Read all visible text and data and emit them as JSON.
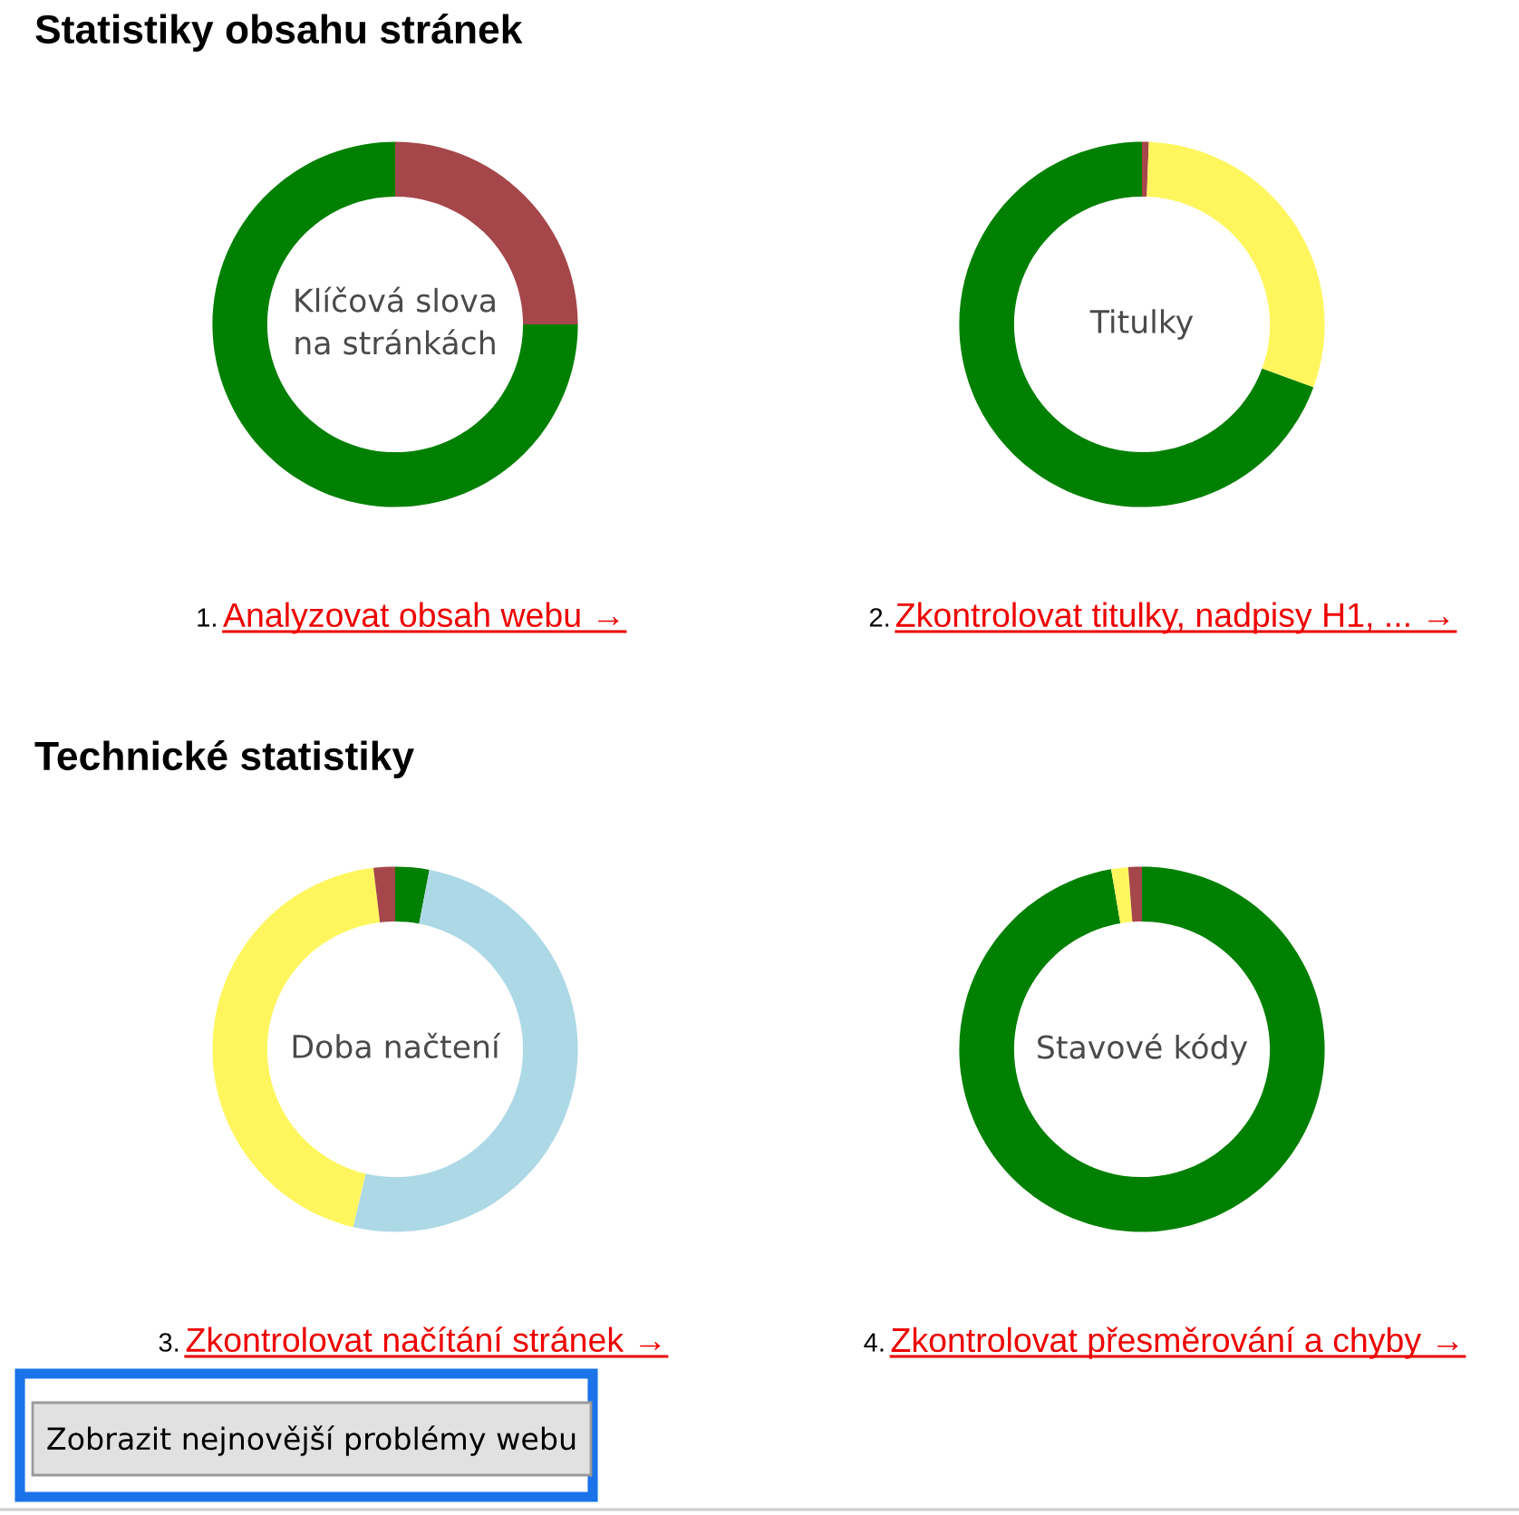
{
  "chart_data": [
    {
      "type": "donut",
      "title": "Klíčová slova na stránkách",
      "categories": [
        null,
        null
      ],
      "values": [
        25,
        75
      ],
      "colors": [
        "#a5474a",
        "#008000"
      ],
      "annotations": [
        "1.",
        "Analyzovat obsah webu →"
      ]
    },
    {
      "type": "donut",
      "title": "Titulky",
      "categories": [
        null,
        null,
        null
      ],
      "values": [
        0.6,
        30,
        69.4
      ],
      "colors": [
        "#a5474a",
        "#fff65e",
        "#008000"
      ],
      "annotations": [
        "2.",
        "Zkontrolovat titulky, nadpisy H1, ... →"
      ]
    },
    {
      "type": "donut",
      "title": "Doba načtení",
      "categories": [
        null,
        null,
        null,
        null
      ],
      "values": [
        3,
        50.7,
        44.4,
        1.9
      ],
      "colors": [
        "#008000",
        "#add8e6",
        "#fff65e",
        "#a5474a"
      ],
      "annotations": [
        "3.",
        "Zkontrolovat načítání stránek →"
      ]
    },
    {
      "type": "donut",
      "title": "Stavové kódy",
      "categories": [
        null,
        null,
        null
      ],
      "values": [
        97.3,
        1.5,
        1.2
      ],
      "colors": [
        "#008000",
        "#fff65e",
        "#a5474a"
      ],
      "annotations": [
        "4.",
        "Zkontrolovat přesměrování a chyby →"
      ]
    },
    {
      "type": "other",
      "annotations": [
        "Statistiky obsahu stránek",
        "Technické statistiky",
        "Zobrazit nejnovější problémy webu"
      ]
    }
  ]
}
